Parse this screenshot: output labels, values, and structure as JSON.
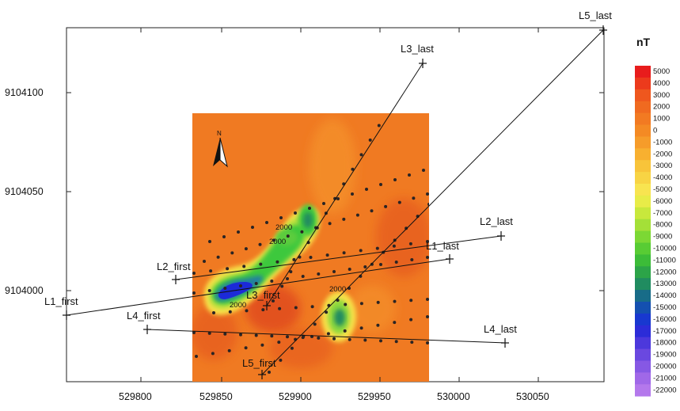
{
  "map": {
    "x_ticks": [
      "529800",
      "529850",
      "529900",
      "529950",
      "530000",
      "530050"
    ],
    "y_ticks": [
      "9104100",
      "9104050",
      "9104000"
    ],
    "north_label": "N",
    "colors": {
      "background": "#f07a22",
      "deep_red": "#d8301c",
      "yellow": "#f8e048",
      "green": "#3cc83c",
      "blue": "#1c2ad8"
    },
    "contour_labels": [
      "2000",
      "2000",
      "2000",
      "2000"
    ]
  },
  "lines": [
    {
      "id": "L1",
      "first": "L1_first",
      "last": "L1_last"
    },
    {
      "id": "L2",
      "first": "L2_first",
      "last": "L2_last"
    },
    {
      "id": "L3",
      "first": "L3_first",
      "last": "L3_last"
    },
    {
      "id": "L4",
      "first": "L4_first",
      "last": "L4_last"
    },
    {
      "id": "L5",
      "first": "L5_first",
      "last": "L5_last"
    }
  ],
  "colorbar": {
    "title": "nT",
    "labels": [
      "5000",
      "4000",
      "3000",
      "2000",
      "1000",
      "0",
      "-1000",
      "-2000",
      "-3000",
      "-4000",
      "-5000",
      "-6000",
      "-7000",
      "-8000",
      "-9000",
      "-10000",
      "-11000",
      "-12000",
      "-13000",
      "-14000",
      "-15000",
      "-16000",
      "-17000",
      "-18000",
      "-19000",
      "-20000",
      "-21000",
      "-22000"
    ],
    "colors": [
      "#e81c1c",
      "#ec3a1c",
      "#ef571e",
      "#f06a20",
      "#f27a22",
      "#f48a24",
      "#f69c2a",
      "#f8b030",
      "#f8c43a",
      "#f8d444",
      "#f8e450",
      "#e8ec48",
      "#c8e83c",
      "#a4e038",
      "#7cd834",
      "#58cc34",
      "#3cbc38",
      "#2ca448",
      "#208c60",
      "#186c88",
      "#1450b0",
      "#1838d0",
      "#2c2cd8",
      "#4c38dc",
      "#6a48e0",
      "#8658e4",
      "#a068e8",
      "#b478ec"
    ]
  }
}
